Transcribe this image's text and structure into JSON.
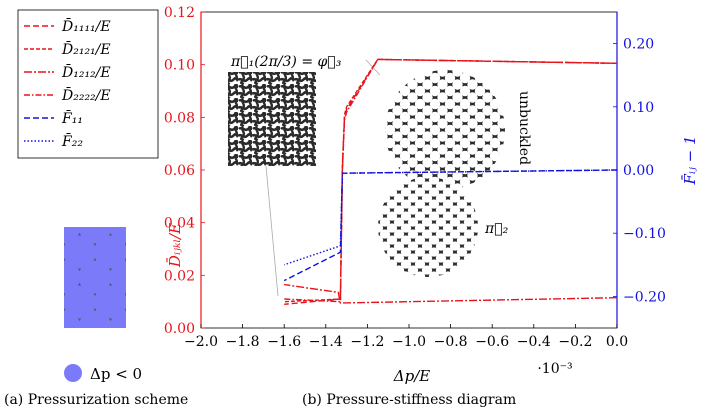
{
  "colors": {
    "red": "#e8141c",
    "blue": "#1010e0",
    "scheme_background": "#555555",
    "scheme_circle": "#7b7bfa",
    "lattice_dark": "#2b2b2b"
  },
  "captions": {
    "left": "(a) Pressurization scheme",
    "right": "(b) Pressure-stiffness diagram"
  },
  "scheme": {
    "legend_label": "Δp < 0"
  },
  "chart_data": {
    "type": "line",
    "xlabel": "Δp/E",
    "x_multiplier": "·10⁻³",
    "ylabel_left": "D̄ᵢⱼₖₗ/E",
    "ylabel_right": "F̄ᵢⱼ − 1",
    "xlim": [
      -2.0,
      0.0
    ],
    "ylim_left": [
      0.0,
      0.12
    ],
    "ylim_right": [
      -0.25,
      0.25
    ],
    "x_ticks": [
      -2.0,
      -1.8,
      -1.6,
      -1.4,
      -1.2,
      -1.0,
      -0.8,
      -0.6,
      -0.4,
      -0.2,
      0.0
    ],
    "x_tick_labels": [
      "−2.0",
      "−1.8",
      "−1.6",
      "−1.4",
      "−1.2",
      "−1.0",
      "−0.8",
      "−0.6",
      "−0.4",
      "−0.2",
      "0.0"
    ],
    "yleft_ticks": [
      0.0,
      0.02,
      0.04,
      0.06,
      0.08,
      0.1,
      0.12
    ],
    "yleft_tick_labels": [
      "0.00",
      "0.02",
      "0.04",
      "0.06",
      "0.08",
      "0.10",
      "0.12"
    ],
    "yright_ticks": [
      -0.2,
      -0.1,
      0.0,
      0.1,
      0.2
    ],
    "yright_tick_labels": [
      "−0.20",
      "−0.10",
      "0.00",
      "0.10",
      "0.20"
    ],
    "grid": false,
    "legend_position": "top-left",
    "series": [
      {
        "name": "D̄₁₁₁₁/E",
        "axis": "left",
        "color": "#e8141c",
        "dash": "6 3",
        "x": [
          0.0,
          -1.15,
          -1.3,
          -1.31,
          -1.32,
          -1.33,
          -1.6
        ],
        "y": [
          0.1005,
          0.102,
          0.083,
          0.08,
          0.06,
          0.011,
          0.009
        ]
      },
      {
        "name": "D̄₂₁₂₁/E",
        "axis": "left",
        "color": "#e8141c",
        "dash": "4 2",
        "x": [
          0.0,
          -1.15,
          -1.3,
          -1.31,
          -1.32,
          -1.33,
          -1.6
        ],
        "y": [
          0.1005,
          0.102,
          0.084,
          0.081,
          0.062,
          0.011,
          0.01
        ]
      },
      {
        "name": "D̄₁₂₁₂/E",
        "axis": "left",
        "color": "#e8141c",
        "dash": "8 2 2 2",
        "x": [
          0.0,
          -1.33,
          -1.34,
          -1.6
        ],
        "y": [
          0.0115,
          0.0095,
          0.0135,
          0.0165
        ]
      },
      {
        "name": "D̄₂₂₂₂/E",
        "axis": "left",
        "color": "#e8141c",
        "dash": "6 2 1.5 2",
        "x": [
          0.0,
          -1.15,
          -1.3,
          -1.31,
          -1.32,
          -1.33,
          -1.6
        ],
        "y": [
          0.1005,
          0.102,
          0.082,
          0.079,
          0.06,
          0.01,
          0.011
        ]
      },
      {
        "name": "F̄₁₁",
        "axis": "right",
        "color": "#1010e0",
        "dash": "6 3",
        "x": [
          0.0,
          -1.32,
          -1.33,
          -1.6
        ],
        "y": [
          0.0,
          -0.005,
          -0.13,
          -0.175
        ]
      },
      {
        "name": "F̄₂₂",
        "axis": "right",
        "color": "#1010e0",
        "dash": "1.5 2",
        "x": [
          0.0,
          -1.32,
          -1.33,
          -1.6
        ],
        "y": [
          0.0,
          -0.005,
          -0.12,
          -0.15
        ]
      }
    ],
    "annotations": [
      {
        "text": "π⃗₁(2π/3) = φ⃗₃"
      },
      {
        "text": "unbuckled"
      },
      {
        "text": "π⃗₂"
      }
    ]
  }
}
